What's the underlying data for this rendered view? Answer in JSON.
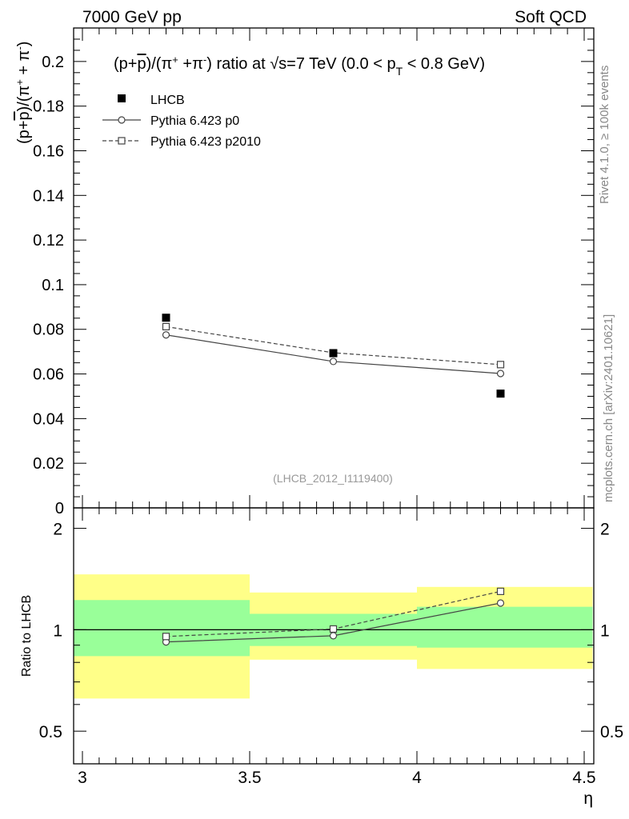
{
  "header": {
    "energy_label": "7000 GeV pp",
    "process_label": "Soft QCD"
  },
  "side_labels": {
    "rivet": "Rivet 4.1.0, ≥ 100k events",
    "mcplots": "mcplots.cern.ch [arXiv:2401.10621]"
  },
  "chart_data": [
    {
      "id": "main",
      "type": "scatter",
      "title": "(p+p̅)/(π⁺ + π⁻) ratio at √s=7 TeV (0.0 < p_T < 0.8 GeV)",
      "title_parts": {
        "prefix": "(p+",
        "pbar": "p",
        "mid": ")/(π",
        "sup_plus": "+",
        "plus": " +π",
        "sup_minus": "-",
        "ratio_at": ") ratio at ",
        "sqrt": "√",
        "s_eq": "s=7 TeV (0.0 < p",
        "sub_t": "T",
        "tail": " < 0.8 GeV)"
      },
      "ylabel": "(p+p̅)/(π⁺ + π⁻)",
      "ylabel_parts": {
        "prefix": "(p+",
        "pbar": "p",
        "mid": ")/(π",
        "sup_plus": "+",
        "plus": " + π",
        "sup_minus": "-",
        "close": ")"
      },
      "xlim": [
        3.0,
        4.5
      ],
      "ylim": [
        0.0,
        0.215
      ],
      "yticks": [
        0.02,
        0.04,
        0.06,
        0.08,
        0.1,
        0.12,
        0.14,
        0.16,
        0.18,
        0.2
      ],
      "ytick_labels": [
        "0.02",
        "0.04",
        "0.06",
        "0.08",
        "0.1",
        "0.12",
        "0.14",
        "0.16",
        "0.18",
        "0.2"
      ],
      "bottom_clipped_label": "0",
      "legend_position": "top-left",
      "watermark": "(LHCB_2012_I1119400)",
      "series": [
        {
          "name": "LHCB",
          "style": "data",
          "marker": "filled-square",
          "x": [
            3.25,
            3.75,
            4.25
          ],
          "y": [
            0.0852,
            0.0693,
            0.0512
          ]
        },
        {
          "name": "Pythia 6.423 p0",
          "style": "solid",
          "marker": "open-circle",
          "x": [
            3.25,
            3.75,
            4.25
          ],
          "y": [
            0.0775,
            0.0656,
            0.0602
          ]
        },
        {
          "name": "Pythia 6.423 p2010",
          "style": "dashed",
          "marker": "open-square",
          "x": [
            3.25,
            3.75,
            4.25
          ],
          "y": [
            0.0812,
            0.0695,
            0.0642
          ]
        }
      ]
    },
    {
      "id": "ratio",
      "type": "line",
      "ylabel": "Ratio to LHCB",
      "xlabel": "η",
      "xlim": [
        3.0,
        4.5
      ],
      "ylim": [
        0.4,
        2.3
      ],
      "yscale": "log",
      "yticks": [
        0.5,
        1,
        2
      ],
      "ytick_labels": [
        "0.5",
        "1",
        "2"
      ],
      "xticks": [
        3.0,
        3.5,
        4.0,
        4.5
      ],
      "xtick_labels": [
        "3",
        "3.5",
        "4",
        "4.5"
      ],
      "reference_line": 1.0,
      "colors": {
        "band_inner": "#99ff99",
        "band_outer": "#ffff88"
      },
      "bands": [
        {
          "x": [
            2.975,
            3.5
          ],
          "inner": [
            0.835,
            1.225
          ],
          "outer": [
            0.625,
            1.46
          ]
        },
        {
          "x": [
            3.5,
            4.0
          ],
          "inner": [
            0.895,
            1.115
          ],
          "outer": [
            0.815,
            1.29
          ]
        },
        {
          "x": [
            4.0,
            4.525
          ],
          "inner": [
            0.885,
            1.17
          ],
          "outer": [
            0.765,
            1.34
          ]
        }
      ],
      "series": [
        {
          "name": "Pythia 6.423 p0",
          "style": "solid",
          "marker": "open-circle",
          "x": [
            3.25,
            3.75,
            4.25
          ],
          "y": [
            0.92,
            0.96,
            1.2
          ]
        },
        {
          "name": "Pythia 6.423 p2010",
          "style": "dashed",
          "marker": "open-square",
          "x": [
            3.25,
            3.75,
            4.25
          ],
          "y": [
            0.955,
            1.005,
            1.3
          ]
        }
      ]
    }
  ]
}
